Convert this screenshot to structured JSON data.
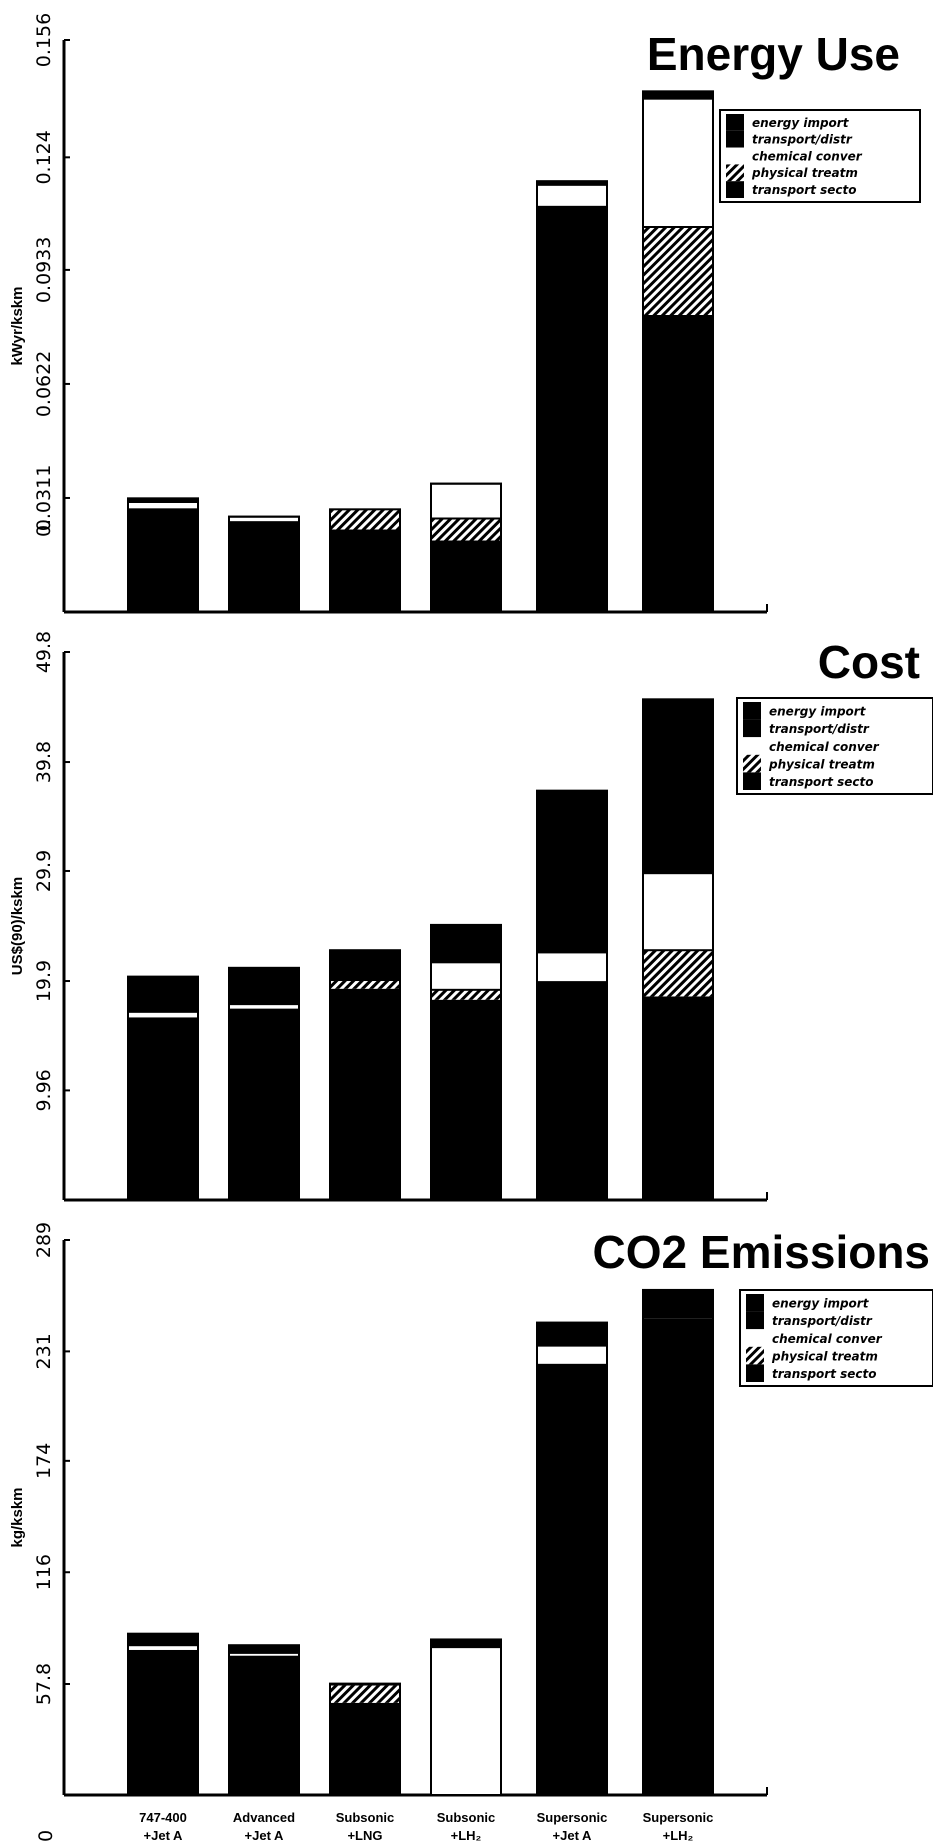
{
  "chart_data": [
    {
      "type": "bar",
      "stacked": true,
      "title": "Energy Use",
      "ylabel": "kWyr/kskm",
      "ylim": [
        0,
        0.156
      ],
      "yticks": [
        "0.156",
        "0.124",
        "0.0933",
        "0.0622",
        "0.0311"
      ],
      "ytick_values": [
        0.156,
        0.124,
        0.0933,
        0.0622,
        0.0311
      ],
      "zero_label": "0.",
      "legend": [
        "energy import",
        "transport/distr",
        "chemical conver",
        "physical treatm",
        "transport secto"
      ],
      "legend_position": "top-right",
      "series": [
        {
          "name": "transport secto",
          "values": [
            0.028,
            0.0245,
            0.0225,
            0.0195,
            0.1105,
            0.081
          ]
        },
        {
          "name": "physical treatm",
          "values": [
            0.0,
            0.0,
            0.0055,
            0.006,
            0.0,
            0.024
          ]
        },
        {
          "name": "chemical conver",
          "values": [
            0.002,
            0.0015,
            0.0,
            0.0095,
            0.006,
            0.035
          ]
        },
        {
          "name": "transport/distr",
          "values": [
            0.001,
            0.0,
            0.0,
            0.0,
            0.001,
            0.0
          ]
        },
        {
          "name": "energy import",
          "values": [
            0.0,
            0.0,
            0.0,
            0.0,
            0.0,
            0.002
          ]
        }
      ]
    },
    {
      "type": "bar",
      "stacked": true,
      "title": "Cost",
      "ylabel": "US$(90)/kskm",
      "ylim": [
        0,
        49.8
      ],
      "yticks": [
        "49.8",
        "39.8",
        "29.9",
        "19.9",
        "9.96"
      ],
      "ytick_values": [
        49.8,
        39.8,
        29.9,
        19.9,
        9.96
      ],
      "legend": [
        "energy import",
        "transport/distr",
        "chemical conver",
        "physical treatm",
        "transport secto"
      ],
      "legend_position": "top-right",
      "series": [
        {
          "name": "transport secto",
          "values": [
            16.5,
            17.3,
            19.2,
            18.2,
            19.8,
            18.5
          ]
        },
        {
          "name": "physical treatm",
          "values": [
            0.0,
            0.0,
            0.7,
            0.9,
            0.0,
            4.2
          ]
        },
        {
          "name": "chemical conver",
          "values": [
            0.6,
            0.5,
            0.0,
            2.5,
            2.7,
            7.0
          ]
        },
        {
          "name": "transport/distr",
          "values": [
            3.2,
            3.3,
            2.8,
            3.4,
            14.7,
            15.8
          ]
        },
        {
          "name": "energy import",
          "values": [
            0.0,
            0.0,
            0.0,
            0.0,
            0.0,
            0.0
          ]
        }
      ]
    },
    {
      "type": "bar",
      "stacked": true,
      "title": "CO2  Emissions",
      "ylabel": "kg/kskm",
      "ylim": [
        0,
        289
      ],
      "yticks": [
        "289",
        "231",
        "174",
        "116",
        "57.8"
      ],
      "ytick_values": [
        289,
        231,
        174,
        116,
        57.8
      ],
      "zero_label": "0",
      "legend": [
        "energy import",
        "transport/distr",
        "chemical conver",
        "physical treatm",
        "transport secto"
      ],
      "legend_position": "top-right",
      "series": [
        {
          "name": "transport secto",
          "values": [
            75.0,
            72.0,
            48.0,
            0.0,
            224.0,
            248.0
          ]
        },
        {
          "name": "physical treatm",
          "values": [
            0.0,
            0.0,
            9.0,
            0.0,
            0.0,
            0.0
          ]
        },
        {
          "name": "chemical conver",
          "values": [
            3.0,
            2.0,
            0.0,
            77.0,
            10.0,
            0.0
          ]
        },
        {
          "name": "transport/distr",
          "values": [
            6.0,
            4.0,
            1.0,
            4.0,
            12.0,
            15.0
          ]
        },
        {
          "name": "energy import",
          "values": [
            0.0,
            0.0,
            0.0,
            0.0,
            0.0,
            0.0
          ]
        }
      ]
    }
  ],
  "categories": [
    {
      "line1": "747-400",
      "line2": "+Jet A"
    },
    {
      "line1": "Advanced",
      "line2": "+Jet A"
    },
    {
      "line1": "Subsonic",
      "line2": "+LNG"
    },
    {
      "line1": "Subsonic",
      "line2": "+LH₂"
    },
    {
      "line1": "Supersonic",
      "line2": "+Jet A"
    },
    {
      "line1": "Supersonic",
      "line2": "+LH₂"
    }
  ],
  "colors": {
    "energy import": "#000000",
    "transport/distr": "#0a0a0a",
    "chemical conver": "#ffffff",
    "physical treatm": "hatch",
    "transport secto": "#050505"
  }
}
